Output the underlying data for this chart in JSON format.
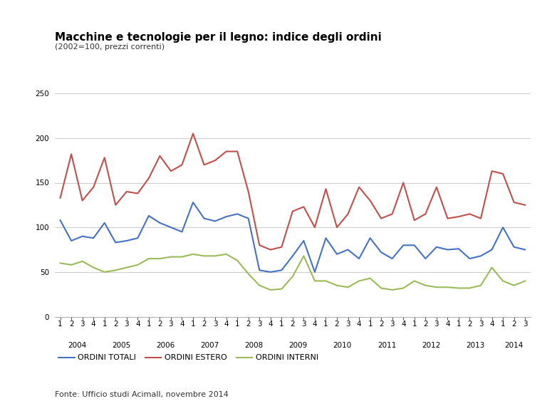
{
  "title": "Macchine e tecnologie per il legno: indice degli ordini",
  "subtitle": "(2002=100, prezzi correnti)",
  "source": "Fonte: Ufficio studi Acimall, novembre 2014",
  "legend_labels": [
    "ORDINI TOTALI",
    "ORDINI ESTERO",
    "ORDINI INTERNI"
  ],
  "colors": [
    "#4472C4",
    "#C0504D",
    "#9BBB59"
  ],
  "ylim": [
    0,
    250
  ],
  "yticks": [
    0,
    50,
    100,
    150,
    200,
    250
  ],
  "years": [
    2004,
    2005,
    2006,
    2007,
    2008,
    2009,
    2010,
    2011,
    2012,
    2013,
    2014
  ],
  "quarter_labels": [
    "1",
    "2",
    "3",
    "4",
    "1",
    "2",
    "3",
    "4",
    "1",
    "2",
    "3",
    "4",
    "1",
    "2",
    "3",
    "4",
    "1",
    "2",
    "3",
    "4",
    "1",
    "2",
    "3",
    "4",
    "1",
    "2",
    "3",
    "4",
    "1",
    "2",
    "3",
    "4",
    "1",
    "2",
    "3",
    "4",
    "1",
    "2",
    "3",
    "4",
    "1",
    "2",
    "3"
  ],
  "ordini_totali": [
    108,
    85,
    90,
    88,
    105,
    83,
    85,
    88,
    113,
    105,
    100,
    95,
    128,
    110,
    107,
    112,
    115,
    110,
    52,
    50,
    52,
    68,
    85,
    50,
    88,
    70,
    75,
    65,
    88,
    72,
    65,
    80,
    80,
    65,
    78,
    75,
    76,
    65,
    68,
    75,
    100,
    78,
    75
  ],
  "ordini_estero": [
    133,
    182,
    130,
    145,
    178,
    125,
    140,
    138,
    155,
    180,
    163,
    170,
    205,
    170,
    175,
    185,
    185,
    140,
    80,
    75,
    78,
    118,
    123,
    100,
    143,
    100,
    115,
    145,
    130,
    110,
    115,
    150,
    108,
    115,
    145,
    110,
    112,
    115,
    110,
    163,
    160,
    128,
    125
  ],
  "ordini_interni": [
    60,
    58,
    62,
    55,
    50,
    52,
    55,
    58,
    65,
    65,
    67,
    67,
    70,
    68,
    68,
    70,
    63,
    48,
    35,
    30,
    31,
    45,
    68,
    40,
    40,
    35,
    33,
    40,
    43,
    32,
    30,
    32,
    40,
    35,
    33,
    33,
    32,
    32,
    35,
    55,
    40,
    35,
    40
  ],
  "background_color": "#FFFFFF",
  "grid_color": "#CCCCCC",
  "line_width": 1.5,
  "title_fontsize": 11,
  "subtitle_fontsize": 8,
  "tick_fontsize": 7.5,
  "legend_fontsize": 8,
  "source_fontsize": 8
}
